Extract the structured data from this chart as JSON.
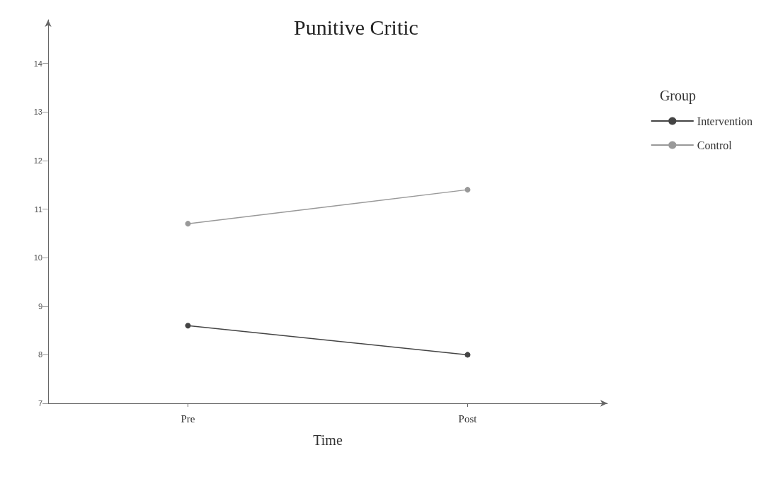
{
  "chart_data": {
    "type": "line",
    "title": "Punitive Critic",
    "xlabel": "Time",
    "legend_title": "Group",
    "categories": [
      "Pre",
      "Post"
    ],
    "series": [
      {
        "name": "Intervention",
        "color": "#444444",
        "values": [
          8.6,
          8.0
        ]
      },
      {
        "name": "Control",
        "color": "#999999",
        "values": [
          10.7,
          11.4
        ]
      }
    ],
    "ylim": [
      7,
      14.9
    ],
    "yticks": [
      7,
      8,
      9,
      10,
      11,
      12,
      13,
      14
    ],
    "grid": false,
    "legend": "top right",
    "marker": "circle"
  }
}
